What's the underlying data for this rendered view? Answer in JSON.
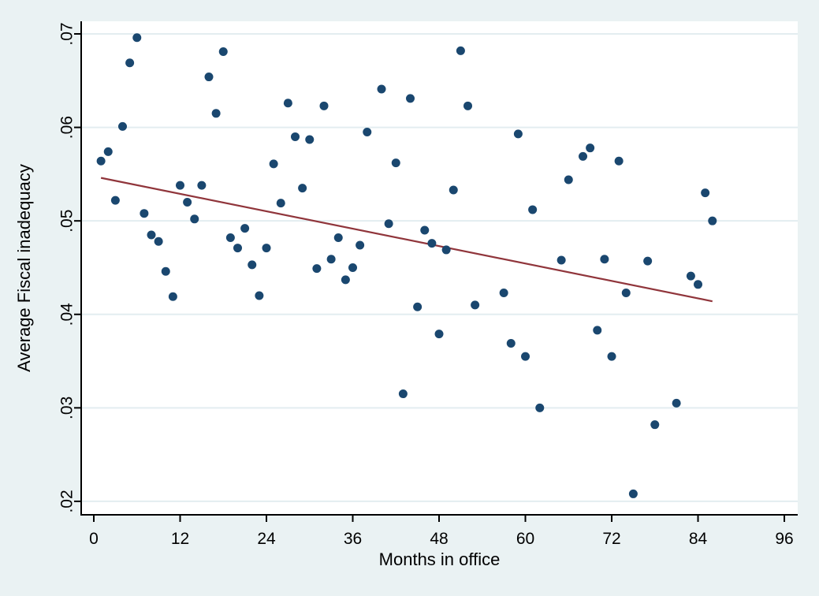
{
  "window": {
    "background_color": "#eaf2f3"
  },
  "chart_data": {
    "type": "scatter",
    "title": "",
    "xlabel": "Months in office",
    "ylabel": "Average Fiscal inadequacy",
    "grid": true,
    "legend": "none",
    "xlim": [
      -1.753,
      97.86
    ],
    "ylim": [
      0.01856,
      0.07135
    ],
    "x_ticks": [
      0,
      12,
      24,
      36,
      48,
      60,
      72,
      84,
      96
    ],
    "y_ticks": [
      0.02,
      0.03,
      0.04,
      0.05,
      0.06,
      0.07
    ],
    "y_tick_labels": [
      ".02",
      ".03",
      ".04",
      ".05",
      ".06",
      ".07"
    ],
    "series": [
      {
        "name": "Average Fiscal inadequacy",
        "marker": "circle",
        "points": [
          [
            1,
            0.0564
          ],
          [
            2,
            0.0574
          ],
          [
            3,
            0.0522
          ],
          [
            4,
            0.0601
          ],
          [
            5,
            0.0669
          ],
          [
            6,
            0.0696
          ],
          [
            7,
            0.0508
          ],
          [
            8,
            0.0485
          ],
          [
            9,
            0.0478
          ],
          [
            10,
            0.0446
          ],
          [
            11,
            0.0419
          ],
          [
            12,
            0.0538
          ],
          [
            13,
            0.052
          ],
          [
            14,
            0.0502
          ],
          [
            15,
            0.0538
          ],
          [
            16,
            0.0654
          ],
          [
            17,
            0.0615
          ],
          [
            18,
            0.0681
          ],
          [
            19,
            0.0482
          ],
          [
            20,
            0.0471
          ],
          [
            21,
            0.0492
          ],
          [
            22,
            0.0453
          ],
          [
            23,
            0.042
          ],
          [
            24,
            0.0471
          ],
          [
            25,
            0.0561
          ],
          [
            26,
            0.0519
          ],
          [
            27,
            0.0626
          ],
          [
            28,
            0.059
          ],
          [
            29,
            0.0535
          ],
          [
            30,
            0.0587
          ],
          [
            31,
            0.0449
          ],
          [
            32,
            0.0623
          ],
          [
            33,
            0.0459
          ],
          [
            34,
            0.0482
          ],
          [
            35,
            0.0437
          ],
          [
            36,
            0.045
          ],
          [
            37,
            0.0474
          ],
          [
            38,
            0.0595
          ],
          [
            40,
            0.0641
          ],
          [
            41,
            0.0497
          ],
          [
            42,
            0.0562
          ],
          [
            43,
            0.0315
          ],
          [
            44,
            0.0631
          ],
          [
            45,
            0.0408
          ],
          [
            46,
            0.049
          ],
          [
            47,
            0.0476
          ],
          [
            48,
            0.0379
          ],
          [
            49,
            0.0469
          ],
          [
            50,
            0.0533
          ],
          [
            51,
            0.0682
          ],
          [
            52,
            0.0623
          ],
          [
            53,
            0.041
          ],
          [
            57,
            0.0423
          ],
          [
            58,
            0.0369
          ],
          [
            59,
            0.0593
          ],
          [
            60,
            0.0355
          ],
          [
            61,
            0.0512
          ],
          [
            62,
            0.03
          ],
          [
            65,
            0.0458
          ],
          [
            66,
            0.0544
          ],
          [
            68,
            0.0569
          ],
          [
            69,
            0.0578
          ],
          [
            70,
            0.0383
          ],
          [
            71,
            0.0459
          ],
          [
            72,
            0.0355
          ],
          [
            73,
            0.0564
          ],
          [
            74,
            0.0423
          ],
          [
            75,
            0.0208
          ],
          [
            77,
            0.0457
          ],
          [
            78,
            0.0282
          ],
          [
            81,
            0.0305
          ],
          [
            83,
            0.0441
          ],
          [
            84,
            0.0432
          ],
          [
            85,
            0.053
          ],
          [
            86,
            0.05
          ]
        ]
      }
    ],
    "fit_line": {
      "x1": 1.0,
      "y1": 0.0546,
      "x2": 86.0,
      "y2": 0.0414
    },
    "colors": {
      "marker": "#1a476f",
      "fit_line": "#90353b",
      "plot_background": "#ffffff",
      "grid_line": "#e3edf0",
      "axis": "#000000",
      "tick_label": "#000000",
      "background": "#eaf2f3"
    }
  }
}
